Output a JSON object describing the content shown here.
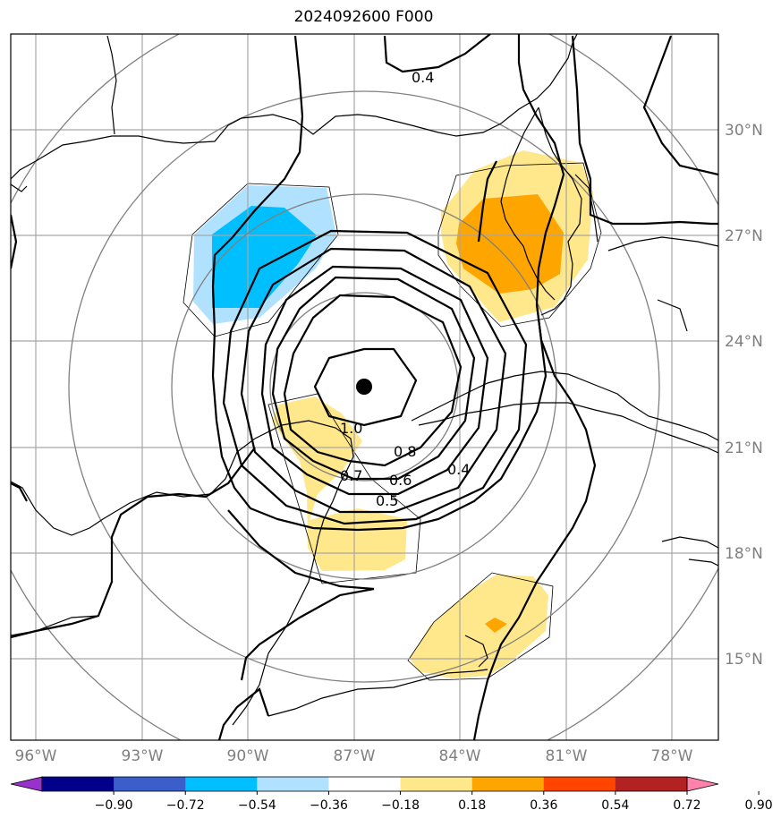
{
  "title": "2024092600 F000",
  "lat_labels": [
    "30°N",
    "27°N",
    "24°N",
    "21°N",
    "18°N",
    "15°N"
  ],
  "lon_labels": [
    "96°W",
    "93°W",
    "90°W",
    "87°W",
    "84°W",
    "81°W",
    "78°W"
  ],
  "contour_labels": [
    "0.4",
    "1.0",
    "0.8",
    "0.7",
    "0.6",
    "0.5",
    "0.4"
  ],
  "colorbar": {
    "colors": [
      "#9932cc",
      "#00008b",
      "#3a5fcd",
      "#00bfff",
      "#b0e2ff",
      "#ffffff",
      "#ffe78c",
      "#ffa500",
      "#ff4500",
      "#b22222",
      "#ff82ab"
    ],
    "tick_labels": [
      "−0.90",
      "−0.72",
      "−0.54",
      "−0.36",
      "−0.18",
      "0.18",
      "0.36",
      "0.54",
      "0.72",
      "0.90"
    ],
    "levels": [
      -0.9,
      -0.72,
      -0.54,
      -0.36,
      -0.18,
      0.18,
      0.36,
      0.54,
      0.72,
      0.9
    ]
  },
  "colors": {
    "neg_light": "#b0e2ff",
    "neg_mid": "#00bfff",
    "pos_light": "#ffe78c",
    "pos_mid": "#ffa500",
    "grid": "#a6a6a6",
    "ring": "#808080"
  }
}
